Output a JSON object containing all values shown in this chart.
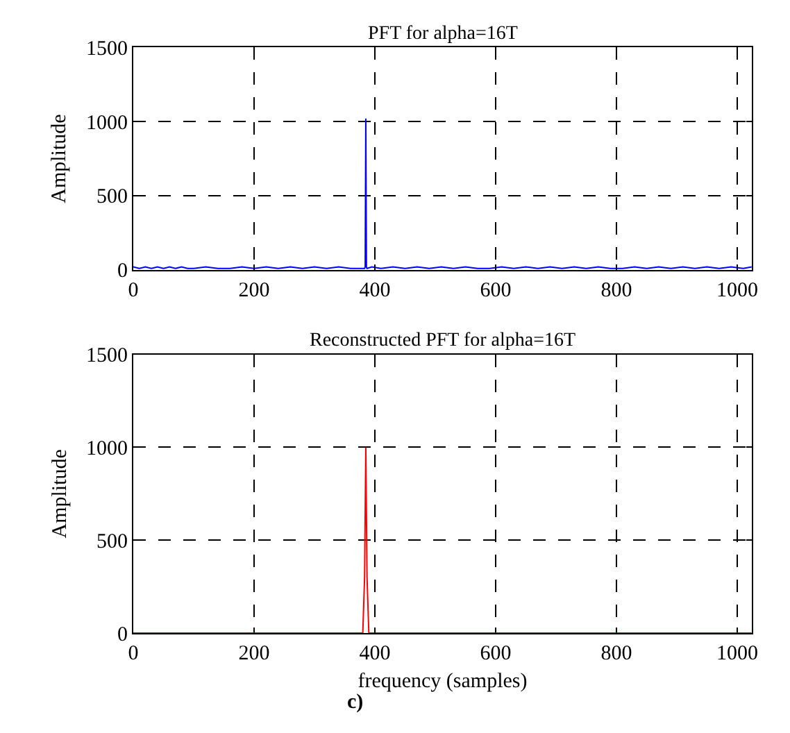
{
  "chart_data": [
    {
      "type": "line",
      "title": "PFT for alpha=16T",
      "ylabel": "Amplitude",
      "xlim": [
        0,
        1024
      ],
      "ylim": [
        0,
        1500
      ],
      "xticks": [
        0,
        200,
        400,
        600,
        800,
        1000
      ],
      "yticks": [
        0,
        500,
        1000,
        1500
      ],
      "grid": true,
      "series": [
        {
          "color": "#0000ff",
          "x": [
            0,
            10,
            20,
            30,
            40,
            50,
            60,
            70,
            80,
            90,
            100,
            120,
            140,
            160,
            180,
            200,
            220,
            240,
            260,
            280,
            300,
            320,
            340,
            360,
            375,
            383,
            384,
            385,
            386,
            387,
            395,
            410,
            430,
            450,
            470,
            490,
            510,
            530,
            550,
            570,
            590,
            610,
            630,
            650,
            670,
            690,
            710,
            730,
            750,
            770,
            790,
            810,
            830,
            850,
            870,
            890,
            910,
            930,
            950,
            970,
            990,
            1010,
            1024
          ],
          "values": [
            20,
            10,
            20,
            10,
            20,
            10,
            20,
            10,
            20,
            10,
            10,
            20,
            10,
            10,
            20,
            10,
            20,
            10,
            20,
            10,
            20,
            10,
            20,
            10,
            10,
            10,
            20,
            1020,
            20,
            10,
            20,
            10,
            20,
            10,
            20,
            10,
            20,
            10,
            20,
            10,
            10,
            20,
            10,
            20,
            10,
            20,
            10,
            20,
            10,
            20,
            10,
            10,
            20,
            10,
            20,
            10,
            20,
            10,
            20,
            10,
            20,
            10,
            20
          ]
        }
      ]
    },
    {
      "type": "line",
      "title": "Reconstructed PFT for alpha=16T",
      "ylabel": "Amplitude",
      "xlabel": "frequency (samples)",
      "xlim": [
        0,
        1024
      ],
      "ylim": [
        0,
        1500
      ],
      "xticks": [
        0,
        200,
        400,
        600,
        800,
        1000
      ],
      "yticks": [
        0,
        500,
        1000,
        1500
      ],
      "grid": true,
      "annotations": [
        "c)"
      ],
      "series": [
        {
          "color": "#ff0000",
          "x": [
            0,
            200,
            380,
            383,
            385,
            387,
            390,
            600,
            800,
            1024
          ],
          "values": [
            0,
            0,
            0,
            300,
            1000,
            300,
            0,
            0,
            0,
            0
          ]
        }
      ]
    }
  ]
}
